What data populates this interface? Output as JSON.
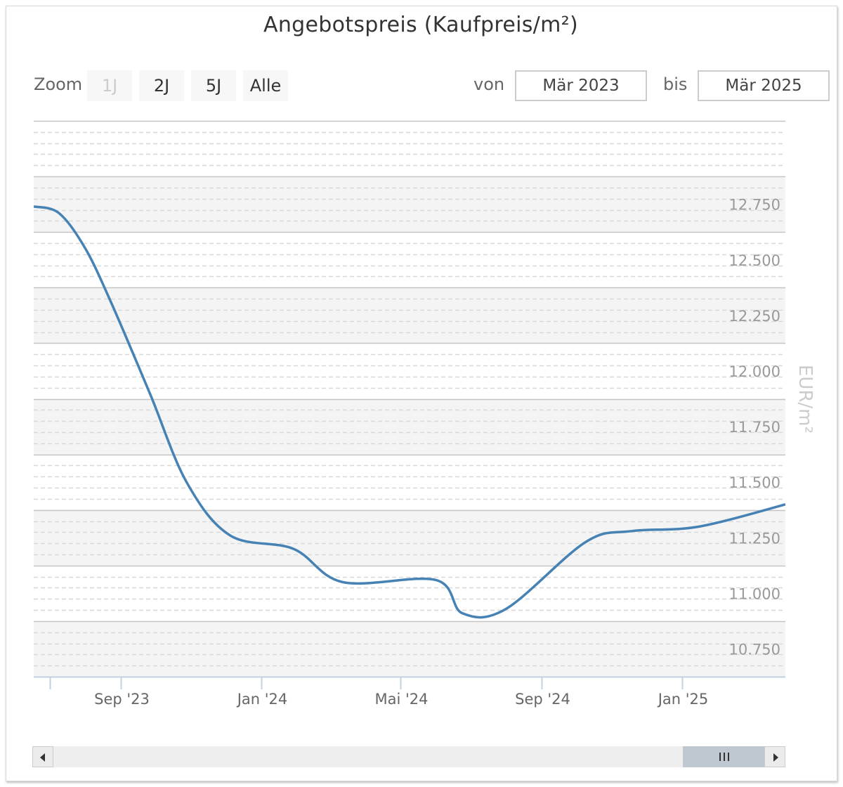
{
  "chart": {
    "title": "Angebotspreis (Kaufpreis/m²)",
    "zoom": {
      "label": "Zoom",
      "buttons": [
        "1J",
        "2J",
        "5J",
        "Alle"
      ],
      "active": "1J"
    },
    "range": {
      "from_label": "von",
      "from_value": "Mär 2023",
      "to_label": "bis",
      "to_value": "Mär 2025"
    },
    "y_axis_title": "EUR/m²"
  },
  "chart_data": {
    "type": "line",
    "title": "Angebotspreis (Kaufpreis/m²)",
    "xlabel": "",
    "ylabel": "EUR/m²",
    "ylim": [
      10.625,
      13.125
    ],
    "xlim": [
      "2023-06-17",
      "2025-04-01"
    ],
    "y_ticks": [
      10.75,
      11.0,
      11.25,
      11.5,
      11.75,
      12.0,
      12.25,
      12.5,
      12.75
    ],
    "y_tick_labels": [
      "10.750",
      "11.000",
      "11.250",
      "11.500",
      "11.750",
      "12.000",
      "12.250",
      "12.500",
      "12.750"
    ],
    "x_ticks": [
      {
        "date": "2023-07-01",
        "label": ""
      },
      {
        "date": "2023-09-01",
        "label": "Sep '23"
      },
      {
        "date": "2024-01-01",
        "label": "Jan '24"
      },
      {
        "date": "2024-05-01",
        "label": "Mai '24"
      },
      {
        "date": "2024-09-01",
        "label": "Sep '24"
      },
      {
        "date": "2025-01-01",
        "label": "Jan '25"
      }
    ],
    "grid": true,
    "series": [
      {
        "name": "",
        "color": "#4682b4",
        "points": [
          {
            "x": "2023-06-17",
            "y": 12.74
          },
          {
            "x": "2023-07-09",
            "y": 12.71
          },
          {
            "x": "2023-08-01",
            "y": 12.55
          },
          {
            "x": "2023-08-24",
            "y": 12.3
          },
          {
            "x": "2023-09-26",
            "y": 11.9
          },
          {
            "x": "2023-10-28",
            "y": 11.5
          },
          {
            "x": "2023-12-05",
            "y": 11.26
          },
          {
            "x": "2024-01-29",
            "y": 11.2
          },
          {
            "x": "2024-03-12",
            "y": 11.05
          },
          {
            "x": "2024-06-01",
            "y": 11.06
          },
          {
            "x": "2024-06-24",
            "y": 10.91
          },
          {
            "x": "2024-08-01",
            "y": 10.93
          },
          {
            "x": "2024-10-09",
            "y": 11.23
          },
          {
            "x": "2024-11-18",
            "y": 11.28
          },
          {
            "x": "2025-01-16",
            "y": 11.3
          },
          {
            "x": "2025-04-01",
            "y": 11.4
          }
        ]
      }
    ]
  },
  "navigator": {
    "thumb_grip": "III"
  },
  "icons": {
    "scroll_left": "triangle-left-icon",
    "scroll_right": "triangle-right-icon"
  }
}
